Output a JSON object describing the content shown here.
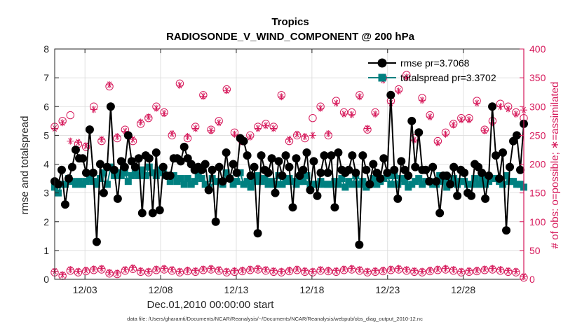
{
  "chart_data": {
    "type": "line",
    "title_line1": "Tropics",
    "title_line2": "RADIOSONDE_V_WIND_COMPONENT @ 200 hPa",
    "xlabel": "Dec.01,2010 00:00:00 start",
    "ylabel_left": "rmse and totalspread",
    "ylabel_right": "# of obs: o=possible; ∗=assimilated",
    "footnote": "data file: /Users/gharamti/Documents/NCAR/Reanalysis/~/Documents/NCAR/Reanalysis/webpub/obs_diag_output_2010-12.nc",
    "x_ticks": [
      {
        "day": 3,
        "label": "12/03"
      },
      {
        "day": 8,
        "label": "12/08"
      },
      {
        "day": 13,
        "label": "12/13"
      },
      {
        "day": 18,
        "label": "12/18"
      },
      {
        "day": 23,
        "label": "12/23"
      },
      {
        "day": 28,
        "label": "12/28"
      }
    ],
    "xlim": [
      1.0,
      32.0
    ],
    "ylim_left": [
      0,
      8
    ],
    "left_ticks": [
      "0",
      "1",
      "2",
      "3",
      "4",
      "5",
      "6",
      "7",
      "8"
    ],
    "ylim_right": [
      0,
      400
    ],
    "right_ticks": [
      "0",
      "50",
      "100",
      "150",
      "200",
      "250",
      "300",
      "350",
      "400"
    ],
    "colors": {
      "rmse": "#000000",
      "spread": "#008080",
      "obs": "#d6185a",
      "axis": "#262626"
    },
    "legend": [
      {
        "key": "rmse",
        "label": "rmse pr=3.7068"
      },
      {
        "key": "spread",
        "label": "totalspread pr=3.3702"
      }
    ],
    "series": [
      {
        "name": "rmse",
        "values": [
          3.4,
          3.3,
          3.8,
          2.6,
          3.5,
          3.9,
          4.5,
          4.2,
          4.2,
          3.7,
          5.2,
          3.7,
          1.3,
          4.0,
          3.0,
          3.9,
          6.0,
          3.8,
          2.8,
          4.1,
          3.9,
          5.0,
          4.1,
          3.9,
          4.2,
          2.3,
          4.3,
          4.2,
          2.3,
          4.4,
          2.4,
          3.9,
          3.6,
          3.6,
          4.2,
          4.2,
          4.1,
          4.6,
          4.2,
          4.0,
          3.8,
          3.9,
          3.8,
          4.0,
          3.1,
          3.8,
          2.0,
          3.9,
          3.4,
          4.4,
          3.5,
          4.0,
          3.7,
          4.9,
          4.8,
          4.3,
          3.6,
          3.9,
          1.6,
          4.3,
          3.8,
          3.7,
          4.2,
          3.0,
          4.1,
          3.6,
          4.3,
          3.9,
          2.5,
          4.2,
          3.6,
          3.8,
          4.4,
          3.1,
          4.1,
          2.9,
          3.7,
          4.3,
          3.7,
          4.3,
          2.5,
          4.4,
          3.8,
          3.7,
          3.8,
          4.3,
          3.7,
          1.2,
          4.3,
          3.8,
          3.3,
          4.0,
          3.7,
          3.5,
          4.2,
          3.7,
          6.4,
          3.8,
          2.8,
          4.1,
          3.8,
          3.6,
          5.5,
          3.9,
          5.1,
          3.8,
          3.8,
          3.4,
          3.9,
          3.4,
          2.3,
          3.6,
          3.6,
          3.3,
          3.9,
          2.9,
          3.8,
          3.7,
          3.0,
          2.9,
          4.0,
          3.9,
          3.7,
          2.8,
          3.6,
          6.0,
          4.3,
          3.5,
          4.4,
          1.7,
          3.9,
          4.8,
          5.0,
          3.8,
          5.4
        ]
      },
      {
        "name": "totalspread",
        "values": [
          3.2,
          3.0,
          3.3,
          3.3,
          3.5,
          3.4,
          3.3,
          3.4,
          3.3,
          3.4,
          3.5,
          3.4,
          3.3,
          3.5,
          3.7,
          3.3,
          3.9,
          3.6,
          3.7,
          3.6,
          3.7,
          3.4,
          3.6,
          3.7,
          3.6,
          3.8,
          3.6,
          3.9,
          3.7,
          3.6,
          3.8,
          3.7,
          3.6,
          3.4,
          3.6,
          3.4,
          3.5,
          3.3,
          3.5,
          3.3,
          3.4,
          3.6,
          3.5,
          3.3,
          3.2,
          3.5,
          3.4,
          3.4,
          3.3,
          3.7,
          3.5,
          3.3,
          3.4,
          3.7,
          3.3,
          3.4,
          3.2,
          3.4,
          3.6,
          3.4,
          3.5,
          3.3,
          3.4,
          3.3,
          3.6,
          3.3,
          3.4,
          3.5,
          3.4,
          3.3,
          3.4,
          3.4,
          3.6,
          3.3,
          3.3,
          3.3,
          3.4,
          3.3,
          3.3,
          3.3,
          3.4,
          3.3,
          3.5,
          3.2,
          3.4,
          3.3,
          3.6,
          3.3,
          3.4,
          3.2,
          3.3,
          3.5,
          3.3,
          3.4,
          3.5,
          3.6,
          3.3,
          3.6,
          3.3,
          3.5,
          3.4,
          3.2,
          3.3,
          3.4,
          3.5,
          3.3,
          3.4,
          3.4,
          3.3,
          3.3,
          3.6,
          3.4,
          3.2,
          3.4,
          3.5,
          3.3,
          3.4,
          3.4,
          3.3,
          3.3,
          3.5,
          3.3,
          3.5,
          3.3,
          3.4,
          3.5,
          3.5,
          3.4,
          3.3,
          3.6,
          3.4,
          3.4,
          3.3,
          3.3,
          3.2
        ]
      }
    ],
    "obs_possible": {
      "high": [
        265,
        275,
        285,
        235,
        230,
        300,
        240,
        335,
        245,
        260,
        240,
        270,
        280,
        300,
        290,
        250,
        340,
        245,
        265,
        320,
        260,
        275,
        330,
        255,
        240,
        250,
        265,
        270,
        265,
        320,
        240,
        250,
        245,
        280,
        300,
        250,
        310,
        290,
        290,
        320,
        260,
        290,
        350,
        310,
        330,
        355,
        245,
        315,
        285,
        240,
        255,
        270,
        280,
        280,
        310,
        260,
        275,
        305,
        300,
        290,
        280
      ],
      "low": [
        12,
        6,
        15,
        12,
        14,
        16,
        17,
        10,
        9,
        15,
        18,
        13,
        12,
        16,
        17,
        15,
        12,
        14,
        13,
        16,
        17,
        15,
        12,
        13,
        14,
        16,
        17,
        15,
        13,
        12,
        14,
        16,
        13,
        12,
        15,
        14,
        13,
        16,
        17,
        15,
        12,
        13,
        14,
        16,
        17,
        15,
        13,
        12,
        14,
        16,
        17,
        15,
        12,
        13,
        14,
        16,
        17,
        15,
        13,
        12,
        3
      ]
    },
    "obs_assimilated": {
      "high": [
        262,
        272,
        240,
        238,
        232,
        295,
        243,
        338,
        248,
        257,
        243,
        273,
        282,
        297,
        288,
        253,
        337,
        248,
        262,
        318,
        258,
        272,
        328,
        252,
        243,
        247,
        262,
        267,
        262,
        317,
        243,
        252,
        248,
        250,
        297,
        253,
        306,
        287,
        286,
        317,
        262,
        287,
        346,
        306,
        327,
        351,
        242,
        311,
        282,
        237,
        252,
        268,
        277,
        277,
        306,
        258,
        272,
        300,
        296,
        287,
        294
      ],
      "low": [
        14,
        8,
        17,
        14,
        16,
        18,
        19,
        12,
        11,
        17,
        20,
        15,
        14,
        18,
        19,
        17,
        14,
        16,
        15,
        18,
        19,
        17,
        14,
        15,
        16,
        18,
        19,
        17,
        15,
        14,
        16,
        18,
        15,
        14,
        17,
        16,
        15,
        18,
        19,
        17,
        14,
        15,
        16,
        18,
        19,
        17,
        15,
        14,
        16,
        18,
        19,
        17,
        14,
        15,
        16,
        18,
        19,
        17,
        15,
        14,
        5
      ]
    }
  }
}
